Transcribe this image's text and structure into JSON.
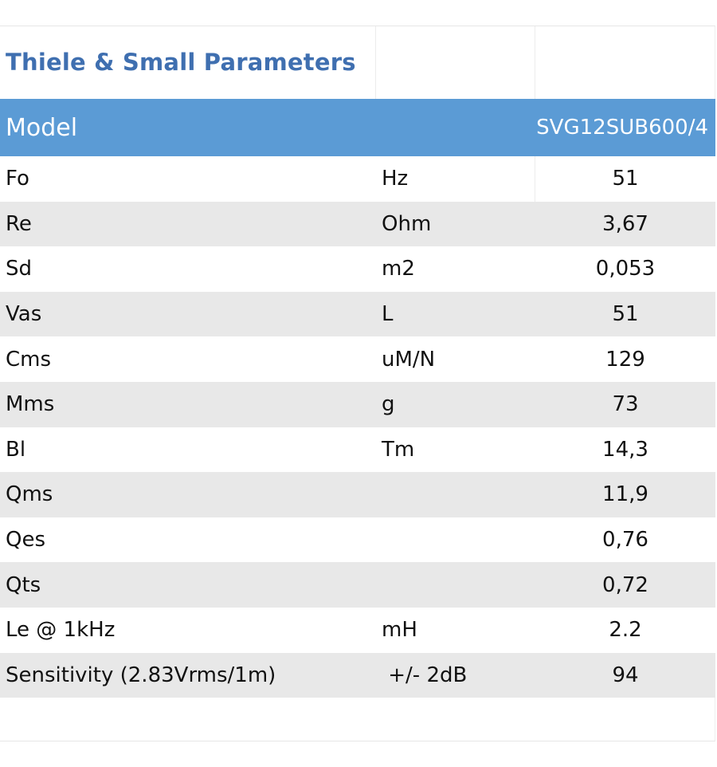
{
  "title": "Thiele & Small Parameters",
  "header": {
    "label": "Model",
    "model": "SVG12SUB600/4"
  },
  "rows": [
    {
      "name": "Fo",
      "unit": "Hz",
      "value": "51"
    },
    {
      "name": "Re",
      "unit": "Ohm",
      "value": "3,67"
    },
    {
      "name": "Sd",
      "unit": "m2",
      "value": "0,053"
    },
    {
      "name": "Vas",
      "unit": "L",
      "value": "51"
    },
    {
      "name": "Cms",
      "unit": "uM/N",
      "value": "129"
    },
    {
      "name": "Mms",
      "unit": "g",
      "value": "73"
    },
    {
      "name": "Bl",
      "unit": "Tm",
      "value": "14,3"
    },
    {
      "name": "Qms",
      "unit": "",
      "value": "11,9"
    },
    {
      "name": "Qes",
      "unit": "",
      "value": "0,76"
    },
    {
      "name": "Qts",
      "unit": "",
      "value": "0,72"
    },
    {
      "name": "Le @ 1kHz",
      "unit": "mH",
      "value": "2.2"
    },
    {
      "name": "Sensitivity (2.83Vrms/1m)",
      "unit": " +/- 2dB",
      "value": "94"
    }
  ],
  "colors": {
    "title": "#3f6fb0",
    "header_bg": "#5b9bd5",
    "header_text": "#ffffff",
    "stripe": "#e8e8e8"
  }
}
